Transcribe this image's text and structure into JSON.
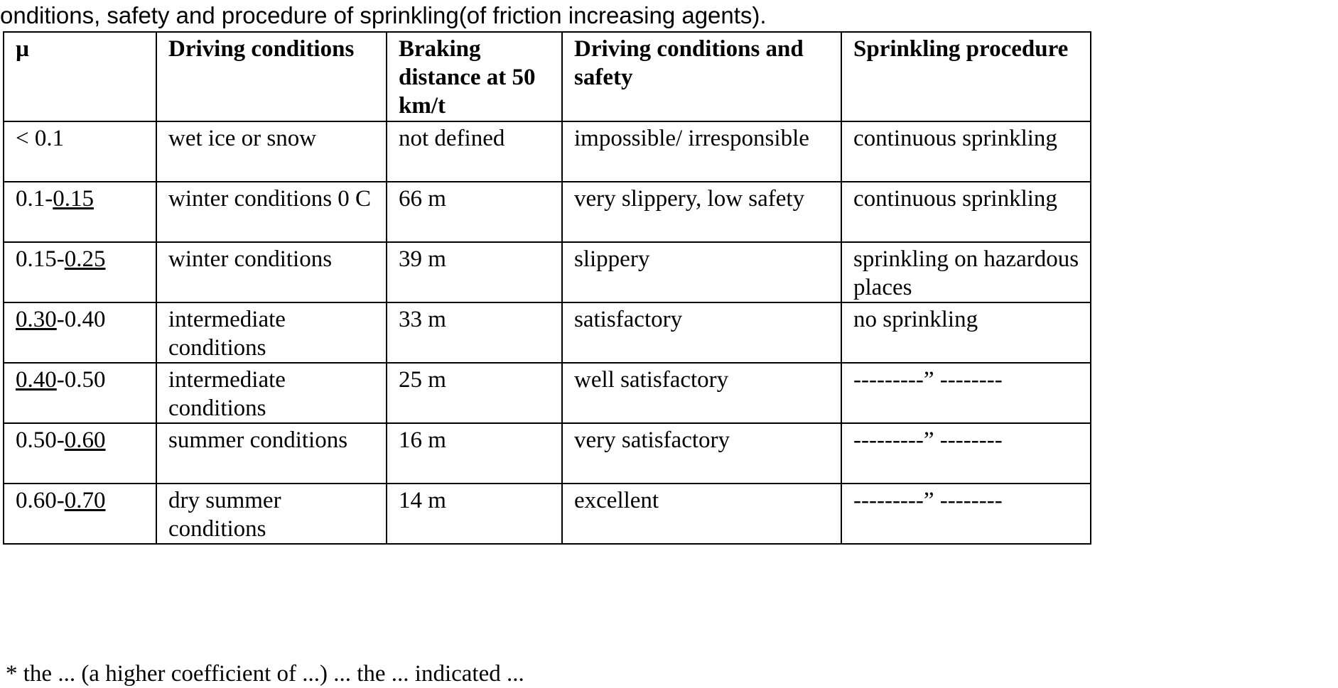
{
  "caption": "onditions, safety and procedure of sprinkling(of friction increasing agents).",
  "table": {
    "headers": [
      "µ",
      "Driving conditions",
      "Braking distance at 50 km/t",
      "Driving conditions and safety",
      "Sprinkling procedure"
    ],
    "rows": [
      {
        "mu": {
          "a": "< 0.1",
          "b": "",
          "c": ""
        },
        "conditions": "wet ice or snow",
        "braking": "not defined",
        "safety": "impossible/ irresponsible",
        "sprinkling": "continuous sprinkling"
      },
      {
        "mu": {
          "a": "0.1-",
          "b": "0.15",
          "c": ""
        },
        "conditions": "winter conditions 0 C",
        "braking": "66 m",
        "safety": "very slippery, low safety",
        "sprinkling": "continuous sprinkling"
      },
      {
        "mu": {
          "a": "0.15-",
          "b": "0.25",
          "c": ""
        },
        "conditions": "winter conditions",
        "braking": "39 m",
        "safety": "slippery",
        "sprinkling": "sprinkling on hazardous places"
      },
      {
        "mu": {
          "a": "",
          "b": "0.30",
          "c": "-0.40"
        },
        "conditions": "intermediate conditions",
        "braking": "33 m",
        "safety": "satisfactory",
        "sprinkling": "no sprinkling"
      },
      {
        "mu": {
          "a": "",
          "b": "0.40",
          "c": "-0.50"
        },
        "conditions": "intermediate conditions",
        "braking": "25 m",
        "safety": "well satisfactory",
        "sprinkling": "---------” --------"
      },
      {
        "mu": {
          "a": "0.50-",
          "b": "0.60",
          "c": ""
        },
        "conditions": "summer conditions",
        "braking": "16 m",
        "safety": "very satisfactory",
        "sprinkling": "---------” --------"
      },
      {
        "mu": {
          "a": "0.60-",
          "b": "0.70",
          "c": ""
        },
        "conditions": "dry summer conditions",
        "braking": "14 m",
        "safety": "excellent",
        "sprinkling": "---------” --------"
      }
    ]
  },
  "footnote": "* the ... (a higher coefficient of ...) ... the ... indicated ..."
}
